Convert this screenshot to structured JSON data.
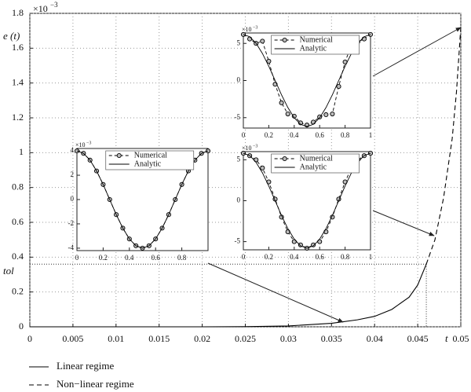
{
  "chart_data": [
    {
      "type": "line",
      "exponent_label": {
        "base": "×10",
        "exponent": "−3"
      },
      "ylabel": "e (t)",
      "xlabel": "t",
      "xlim": [
        0,
        0.05
      ],
      "ylim": [
        0,
        1.8
      ],
      "xticks": [
        0,
        0.005,
        0.01,
        0.015,
        0.02,
        0.025,
        0.03,
        0.035,
        0.04,
        0.045,
        0.05
      ],
      "yticks": [
        0,
        0.2,
        0.4,
        0.6,
        0.8,
        1,
        1.2,
        1.4,
        1.6,
        1.8
      ],
      "grid": true,
      "legend": "bottom",
      "tol": {
        "label": "tol",
        "value": 0.36
      },
      "series": [
        {
          "name": "Linear regime",
          "color": "#000000",
          "x": [
            0,
            0.005,
            0.01,
            0.015,
            0.02,
            0.025,
            0.03,
            0.035,
            0.038,
            0.04,
            0.042,
            0.044,
            0.045,
            0.046
          ],
          "values": [
            0,
            0,
            0,
            0,
            0,
            0.001,
            0.005,
            0.02,
            0.04,
            0.06,
            0.1,
            0.17,
            0.24,
            0.36
          ]
        },
        {
          "name": "Non−linear regime",
          "color": "#000000",
          "dash": true,
          "x": [
            0.046,
            0.047,
            0.048,
            0.049,
            0.0495,
            0.05
          ],
          "values": [
            0.36,
            0.5,
            0.74,
            1.08,
            1.35,
            1.72
          ]
        }
      ]
    },
    {
      "type": "line",
      "exponent_label": {
        "base": "×10",
        "exponent": "−3"
      },
      "xlim": [
        0,
        1
      ],
      "ylim": [
        -4.2,
        4.2
      ],
      "xticks": [
        0,
        0.2,
        0.4,
        0.6,
        0.8
      ],
      "yticks": [
        -4,
        -2,
        0,
        2,
        4
      ],
      "grid": false,
      "legend": "top",
      "series": [
        {
          "name": "Numerical",
          "color": "#000000",
          "dash": true,
          "marker": "o",
          "x": [
            0,
            0.05,
            0.1,
            0.15,
            0.2,
            0.25,
            0.3,
            0.35,
            0.4,
            0.45,
            0.5,
            0.55,
            0.6,
            0.65,
            0.7,
            0.75,
            0.8,
            0.85,
            0.9,
            0.95,
            1
          ],
          "values": [
            4,
            3.8,
            3.24,
            2.35,
            1.24,
            0,
            -1.24,
            -2.35,
            -3.24,
            -3.8,
            -4,
            -3.8,
            -3.24,
            -2.35,
            -1.24,
            0,
            1.24,
            2.35,
            3.24,
            3.8,
            4
          ]
        },
        {
          "name": "Analytic",
          "color": "#000000",
          "x": [
            0,
            0.05,
            0.1,
            0.15,
            0.2,
            0.25,
            0.3,
            0.35,
            0.4,
            0.45,
            0.5,
            0.55,
            0.6,
            0.65,
            0.7,
            0.75,
            0.8,
            0.85,
            0.9,
            0.95,
            1
          ],
          "values": [
            4,
            3.8,
            3.24,
            2.35,
            1.24,
            0,
            -1.24,
            -2.35,
            -3.24,
            -3.8,
            -4,
            -3.8,
            -3.24,
            -2.35,
            -1.24,
            0,
            1.24,
            2.35,
            3.24,
            3.8,
            4
          ]
        }
      ]
    },
    {
      "type": "line",
      "exponent_label": {
        "base": "×10",
        "exponent": "−3"
      },
      "xlim": [
        0,
        1
      ],
      "ylim": [
        -6.4,
        6.4
      ],
      "xticks": [
        0,
        0.2,
        0.4,
        0.6,
        0.8,
        1
      ],
      "yticks": [
        -5,
        0,
        5
      ],
      "grid": false,
      "legend": "top",
      "series": [
        {
          "name": "Numerical",
          "color": "#000000",
          "dash": true,
          "marker": "o",
          "x": [
            0,
            0.05,
            0.1,
            0.15,
            0.2,
            0.25,
            0.3,
            0.35,
            0.4,
            0.45,
            0.5,
            0.55,
            0.6,
            0.65,
            0.7,
            0.75,
            0.8,
            0.85,
            0.9,
            0.95,
            1
          ],
          "values": [
            6.2,
            5.6,
            5,
            5.3,
            2.6,
            -0.5,
            -3,
            -4.5,
            -4.8,
            -5.7,
            -6,
            -5.6,
            -4.9,
            -4.6,
            -4.5,
            -0.8,
            2.5,
            4.8,
            5.2,
            5.6,
            6.2
          ]
        },
        {
          "name": "Analytic",
          "color": "#000000",
          "x": [
            0,
            0.05,
            0.1,
            0.15,
            0.2,
            0.25,
            0.3,
            0.35,
            0.4,
            0.45,
            0.5,
            0.55,
            0.6,
            0.65,
            0.7,
            0.75,
            0.8,
            0.85,
            0.9,
            0.95,
            1
          ],
          "values": [
            6.2,
            5.9,
            5.02,
            3.64,
            1.92,
            0,
            -1.92,
            -3.64,
            -5.02,
            -5.9,
            -6.2,
            -5.9,
            -5.02,
            -3.64,
            -1.92,
            0,
            1.92,
            3.64,
            5.02,
            5.9,
            6.2
          ]
        }
      ]
    },
    {
      "type": "line",
      "exponent_label": {
        "base": "×10",
        "exponent": "−3"
      },
      "xlim": [
        0,
        1
      ],
      "ylim": [
        -6,
        6
      ],
      "xticks": [
        0,
        0.2,
        0.4,
        0.6,
        0.8,
        1
      ],
      "yticks": [
        -5,
        0,
        5
      ],
      "grid": false,
      "legend": "top",
      "series": [
        {
          "name": "Numerical",
          "color": "#000000",
          "dash": true,
          "marker": "o",
          "x": [
            0,
            0.05,
            0.1,
            0.15,
            0.2,
            0.25,
            0.3,
            0.35,
            0.4,
            0.45,
            0.5,
            0.55,
            0.6,
            0.65,
            0.7,
            0.75,
            0.8,
            0.85,
            0.9,
            0.95,
            1
          ],
          "values": [
            5.8,
            5.5,
            5,
            4,
            2.3,
            0.2,
            -2,
            -3.8,
            -5,
            -5.4,
            -5.8,
            -5.4,
            -5,
            -3.8,
            -2,
            0.2,
            2.3,
            4,
            5,
            5.5,
            5.8
          ]
        },
        {
          "name": "Analytic",
          "color": "#000000",
          "x": [
            0,
            0.05,
            0.1,
            0.15,
            0.2,
            0.25,
            0.3,
            0.35,
            0.4,
            0.45,
            0.5,
            0.55,
            0.6,
            0.65,
            0.7,
            0.75,
            0.8,
            0.85,
            0.9,
            0.95,
            1
          ],
          "values": [
            5.8,
            5.52,
            4.69,
            3.41,
            1.79,
            0,
            -1.79,
            -3.41,
            -4.69,
            -5.52,
            -5.8,
            -5.52,
            -4.69,
            -3.41,
            -1.79,
            0,
            1.79,
            3.41,
            4.69,
            5.52,
            5.8
          ]
        }
      ]
    }
  ]
}
